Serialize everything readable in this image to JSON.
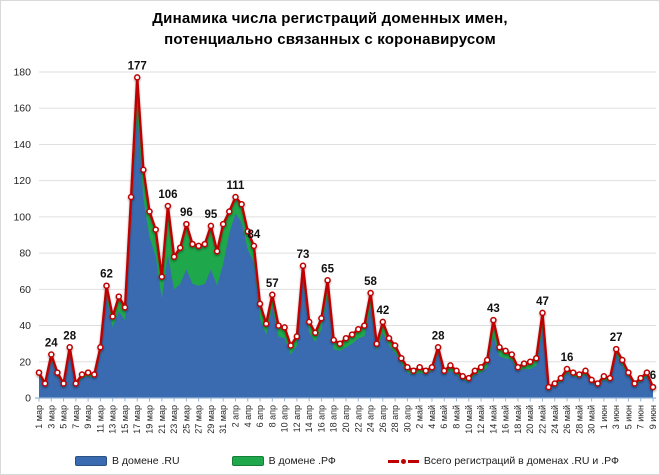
{
  "title": {
    "line1": "Динамика числа регистраций доменных имен,",
    "line2": "потенциально связанных с коронавирусом"
  },
  "legend": [
    {
      "label": "В домене .RU",
      "color": "#3A6BB0"
    },
    {
      "label": "В домене .РФ",
      "color": "#1FA84B"
    },
    {
      "label": "Всего регистраций в доменах .RU и .РФ",
      "color": "#C00000"
    }
  ],
  "colors": {
    "ru_area": "#3A6BB0",
    "rf_area": "#1FA84B",
    "total_line": "#C00000",
    "marker_fill": "#FFFFFF",
    "gridline": "#DFDFDF",
    "axis_line": "#95B3D7",
    "axis_text": "#262626",
    "label_text": "#111111"
  },
  "chart_data": {
    "type": "area",
    "title": "Динамика числа регистраций доменных имен, потенциально связанных с коронавирусом",
    "xlabel": "",
    "ylabel": "",
    "ylim": [
      0,
      180
    ],
    "y_ticks": [
      0,
      20,
      40,
      60,
      80,
      100,
      120,
      140,
      160,
      180
    ],
    "grid": true,
    "legend_position": "bottom",
    "x_label_every": 2,
    "x": [
      "1 мар",
      "2 мар",
      "3 мар",
      "4 мар",
      "5 мар",
      "6 мар",
      "7 мар",
      "8 мар",
      "9 мар",
      "10 мар",
      "11 мар",
      "12 мар",
      "13 мар",
      "14 мар",
      "15 мар",
      "16 мар",
      "17 мар",
      "18 мар",
      "19 мар",
      "20 мар",
      "21 мар",
      "22 мар",
      "23 мар",
      "24 мар",
      "25 мар",
      "26 мар",
      "27 мар",
      "28 мар",
      "29 мар",
      "30 мар",
      "31 мар",
      "1 апр",
      "2 апр",
      "3 апр",
      "4 апр",
      "5 апр",
      "6 апр",
      "7 апр",
      "8 апр",
      "9 апр",
      "10 апр",
      "11 апр",
      "12 апр",
      "13 апр",
      "14 апр",
      "15 апр",
      "16 апр",
      "17 апр",
      "18 апр",
      "19 апр",
      "20 апр",
      "21 апр",
      "22 апр",
      "23 апр",
      "24 апр",
      "25 апр",
      "26 апр",
      "27 апр",
      "28 апр",
      "29 апр",
      "30 апр",
      "1 май",
      "2 май",
      "3 май",
      "4 май",
      "5 май",
      "6 май",
      "7 май",
      "8 май",
      "9 май",
      "10 май",
      "11 май",
      "12 май",
      "13 май",
      "14 май",
      "15 май",
      "16 май",
      "17 май",
      "18 май",
      "19 май",
      "20 май",
      "21 май",
      "22 май",
      "23 май",
      "24 май",
      "25 май",
      "26 май",
      "27 май",
      "28 май",
      "29 май",
      "30 май",
      "31 май",
      "1 июн",
      "2 июн",
      "3 июн",
      "4 июн",
      "5 июн",
      "6 июн",
      "7 июн",
      "8 июн",
      "9 июн"
    ],
    "series": [
      {
        "name": "В домене .RU",
        "type": "area",
        "stacked": true,
        "color": "#3A6BB0",
        "values": [
          12,
          7,
          21,
          12,
          7,
          25,
          7,
          11,
          12,
          11,
          24,
          56,
          39,
          48,
          43,
          99,
          158,
          110,
          89,
          78,
          55,
          79,
          60,
          63,
          71,
          63,
          62,
          63,
          71,
          62,
          74,
          91,
          102,
          97,
          82,
          75,
          44,
          35,
          50,
          34,
          33,
          24,
          29,
          66,
          36,
          31,
          38,
          57,
          27,
          26,
          28,
          30,
          33,
          34,
          50,
          26,
          36,
          29,
          25,
          19,
          14,
          13,
          14,
          13,
          15,
          25,
          13,
          15,
          13,
          10,
          9,
          13,
          14,
          17,
          34,
          23,
          22,
          21,
          15,
          16,
          16,
          18,
          38,
          5,
          7,
          9,
          14,
          12,
          11,
          13,
          9,
          7,
          10,
          9,
          24,
          18,
          12,
          7,
          9,
          12,
          5
        ]
      },
      {
        "name": "В домене .РФ",
        "type": "area",
        "stacked": true,
        "color": "#1FA84B",
        "values": [
          2,
          1,
          3,
          2,
          1,
          3,
          1,
          2,
          2,
          2,
          4,
          6,
          6,
          8,
          7,
          12,
          19,
          16,
          14,
          15,
          12,
          27,
          18,
          20,
          25,
          22,
          22,
          22,
          24,
          19,
          22,
          12,
          9,
          10,
          10,
          9,
          8,
          6,
          7,
          6,
          6,
          5,
          5,
          7,
          6,
          5,
          6,
          8,
          5,
          4,
          5,
          5,
          5,
          6,
          8,
          4,
          6,
          4,
          4,
          3,
          3,
          2,
          3,
          2,
          2,
          3,
          2,
          3,
          2,
          2,
          2,
          2,
          3,
          4,
          9,
          5,
          4,
          3,
          2,
          3,
          4,
          4,
          9,
          1,
          1,
          2,
          2,
          2,
          2,
          2,
          1,
          1,
          2,
          2,
          3,
          3,
          2,
          1,
          2,
          2,
          1
        ]
      },
      {
        "name": "Всего регистраций в доменах .RU и .РФ",
        "type": "line",
        "color": "#C00000",
        "values": [
          14,
          8,
          24,
          14,
          8,
          28,
          8,
          13,
          14,
          13,
          28,
          62,
          45,
          56,
          50,
          111,
          177,
          126,
          103,
          93,
          67,
          106,
          78,
          83,
          96,
          85,
          84,
          85,
          95,
          81,
          96,
          103,
          111,
          107,
          92,
          84,
          52,
          41,
          57,
          40,
          39,
          29,
          34,
          73,
          42,
          36,
          44,
          65,
          32,
          30,
          33,
          35,
          38,
          40,
          58,
          30,
          42,
          33,
          29,
          22,
          17,
          15,
          17,
          15,
          17,
          28,
          15,
          18,
          15,
          12,
          11,
          15,
          17,
          21,
          43,
          28,
          26,
          24,
          17,
          19,
          20,
          22,
          47,
          6,
          8,
          11,
          16,
          14,
          13,
          15,
          10,
          8,
          12,
          11,
          27,
          21,
          14,
          8,
          11,
          14,
          6
        ]
      }
    ],
    "annotations": [
      {
        "i": 2,
        "v": 24
      },
      {
        "i": 5,
        "v": 28
      },
      {
        "i": 11,
        "v": 62
      },
      {
        "i": 16,
        "v": 177
      },
      {
        "i": 21,
        "v": 106
      },
      {
        "i": 24,
        "v": 96
      },
      {
        "i": 28,
        "v": 95
      },
      {
        "i": 32,
        "v": 111
      },
      {
        "i": 35,
        "v": 84
      },
      {
        "i": 38,
        "v": 57
      },
      {
        "i": 43,
        "v": 73
      },
      {
        "i": 47,
        "v": 65
      },
      {
        "i": 54,
        "v": 58
      },
      {
        "i": 56,
        "v": 42
      },
      {
        "i": 65,
        "v": 28
      },
      {
        "i": 74,
        "v": 43
      },
      {
        "i": 82,
        "v": 47
      },
      {
        "i": 86,
        "v": 16
      },
      {
        "i": 94,
        "v": 27
      },
      {
        "i": 100,
        "v": 6
      }
    ]
  }
}
